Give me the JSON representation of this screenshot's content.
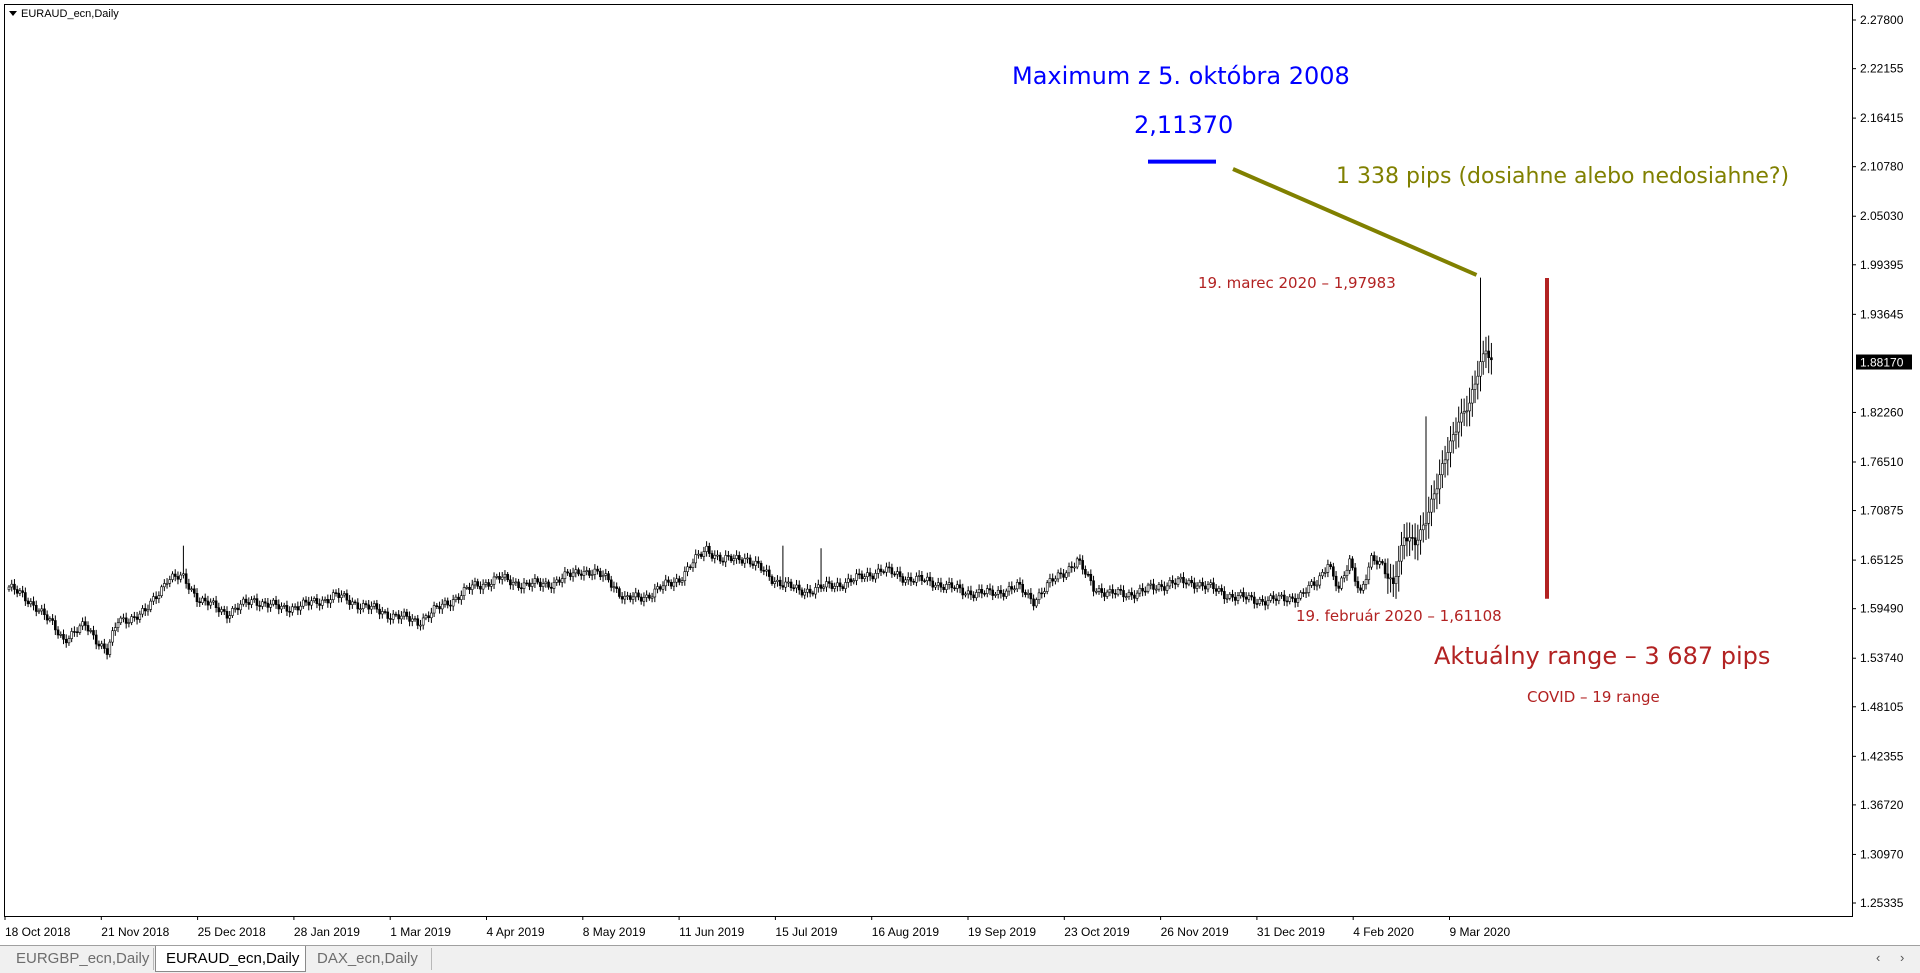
{
  "window": {
    "symbol_title": "EURAUD_ecn,Daily"
  },
  "colors": {
    "candle": "#000000",
    "axis_text": "#000000",
    "annotation_blue": "#0000ff",
    "annotation_olive": "#808000",
    "annotation_red": "#b22222",
    "current_price_bg": "#000000",
    "current_price_text": "#ffffff"
  },
  "chart_data": {
    "type": "candlestick",
    "symbol": "EURAUD_ecn",
    "timeframe": "Daily",
    "y_tick_labels": [
      "2.27800",
      "2.22155",
      "2.16415",
      "2.10780",
      "2.05030",
      "1.99395",
      "1.93645",
      "1.88170",
      "1.82260",
      "1.76510",
      "1.70875",
      "1.65125",
      "1.59490",
      "1.53740",
      "1.48105",
      "1.42355",
      "1.36720",
      "1.30970",
      "1.25335"
    ],
    "current_price": "1.88170",
    "ylim": [
      1.22,
      2.3
    ],
    "x_tick_labels": [
      "18 Oct 2018",
      "21 Nov 2018",
      "25 Dec 2018",
      "28 Jan 2019",
      "1 Mar 2019",
      "4 Apr 2019",
      "8 May 2019",
      "11 Jun 2019",
      "15 Jul 2019",
      "16 Aug 2019",
      "19 Sep 2019",
      "23 Oct 2019",
      "26 Nov 2019",
      "31 Dec 2019",
      "4 Feb 2020",
      "9 Mar 2020"
    ],
    "close_path": [
      [
        0,
        1.62
      ],
      [
        10,
        1.598
      ],
      [
        20,
        1.56
      ],
      [
        28,
        1.575
      ],
      [
        36,
        1.545
      ],
      [
        40,
        1.58
      ],
      [
        50,
        1.59
      ],
      [
        58,
        1.63
      ],
      [
        64,
        1.63
      ],
      [
        70,
        1.605
      ],
      [
        80,
        1.59
      ],
      [
        90,
        1.605
      ],
      [
        100,
        1.595
      ],
      [
        110,
        1.6
      ],
      [
        120,
        1.61
      ],
      [
        130,
        1.598
      ],
      [
        140,
        1.588
      ],
      [
        150,
        1.58
      ],
      [
        160,
        1.6
      ],
      [
        170,
        1.62
      ],
      [
        180,
        1.63
      ],
      [
        190,
        1.622
      ],
      [
        200,
        1.625
      ],
      [
        210,
        1.64
      ],
      [
        220,
        1.63
      ],
      [
        226,
        1.605
      ],
      [
        234,
        1.61
      ],
      [
        246,
        1.63
      ],
      [
        256,
        1.665
      ],
      [
        262,
        1.65
      ],
      [
        270,
        1.655
      ],
      [
        280,
        1.63
      ],
      [
        290,
        1.615
      ],
      [
        300,
        1.62
      ],
      [
        310,
        1.628
      ],
      [
        320,
        1.64
      ],
      [
        330,
        1.63
      ],
      [
        340,
        1.625
      ],
      [
        350,
        1.615
      ],
      [
        360,
        1.612
      ],
      [
        370,
        1.62
      ],
      [
        376,
        1.605
      ],
      [
        384,
        1.63
      ],
      [
        392,
        1.65
      ],
      [
        398,
        1.62
      ],
      [
        404,
        1.612
      ],
      [
        410,
        1.612
      ],
      [
        416,
        1.615
      ],
      [
        426,
        1.625
      ],
      [
        436,
        1.625
      ],
      [
        446,
        1.612
      ],
      [
        456,
        1.605
      ],
      [
        466,
        1.605
      ],
      [
        474,
        1.61
      ],
      [
        480,
        1.625
      ],
      [
        484,
        1.65
      ],
      [
        488,
        1.615
      ],
      [
        492,
        1.65
      ],
      [
        496,
        1.615
      ],
      [
        500,
        1.65
      ],
      [
        504,
        1.645
      ],
      [
        508,
        1.625
      ],
      [
        512,
        1.675
      ],
      [
        516,
        1.672
      ],
      [
        520,
        1.7
      ],
      [
        524,
        1.735
      ],
      [
        528,
        1.78
      ],
      [
        532,
        1.815
      ],
      [
        536,
        1.83
      ],
      [
        540,
        1.88
      ],
      [
        542,
        1.9
      ],
      [
        544,
        1.882
      ]
    ],
    "spikes": [
      [
        64,
        1.668
      ],
      [
        284,
        1.668
      ],
      [
        298,
        1.665
      ],
      [
        520,
        1.818
      ],
      [
        540,
        1.979
      ]
    ],
    "annotations": {
      "max_title": "Maximum z 5. októbra 2008",
      "max_value": "2,11370",
      "pips_to_max": "1 338 pips (dosiahne alebo nedosiahne?)",
      "march_low_label": "19. marec 2020  – 1,97983",
      "feb_label": "19. február 2020 – 1,61108",
      "range_label": "Aktuálny range – 3 687 pips",
      "covid_label": "COVID – 19 range"
    },
    "levels": {
      "max_2008": 2.1137,
      "high_mar_2020": 1.97983,
      "low_feb_2020": 1.61108
    }
  },
  "tabs": [
    {
      "label": "EURGBP_ecn,Daily",
      "active": false
    },
    {
      "label": "EURAUD_ecn,Daily",
      "active": true
    },
    {
      "label": "DAX_ecn,Daily",
      "active": false
    }
  ],
  "scroll": {
    "left": "‹",
    "right": "›"
  }
}
